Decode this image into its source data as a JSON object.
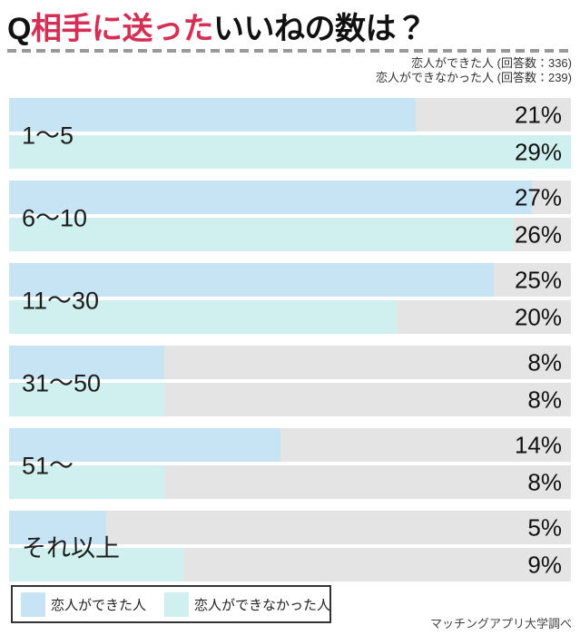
{
  "title": {
    "q": "Q",
    "highlight": "相手に送った",
    "rest": "いいねの数は？"
  },
  "annotation": {
    "line1": "恋人ができた人 (回答数：336)",
    "line2": "恋人ができなかった人 (回答数：239)"
  },
  "chart_data": {
    "type": "bar",
    "orientation": "horizontal",
    "title": "Q相手に送ったいいねの数は？",
    "categories": [
      "1〜5",
      "6〜10",
      "11〜30",
      "31〜50",
      "51〜",
      "それ以上"
    ],
    "series": [
      {
        "name": "恋人ができた人",
        "respondents": 336,
        "color": "#c7e4f5",
        "values": [
          21,
          27,
          25,
          8,
          14,
          5
        ]
      },
      {
        "name": "恋人ができなかった人",
        "respondents": 239,
        "color": "#cff0ee",
        "values": [
          29,
          26,
          20,
          8,
          8,
          9
        ]
      }
    ],
    "value_suffix": "%",
    "xmax": 29,
    "track_color": "#e4e4e4",
    "grid": false,
    "legend_position": "bottom-left"
  },
  "colors": {
    "accent_red": "#d62f55",
    "bar_blue": "#c7e4f5",
    "bar_cyan": "#cff0ee",
    "track_gray": "#e4e4e4",
    "dash_gray": "#999999"
  },
  "source": "マッチングアプリ大学調べ"
}
